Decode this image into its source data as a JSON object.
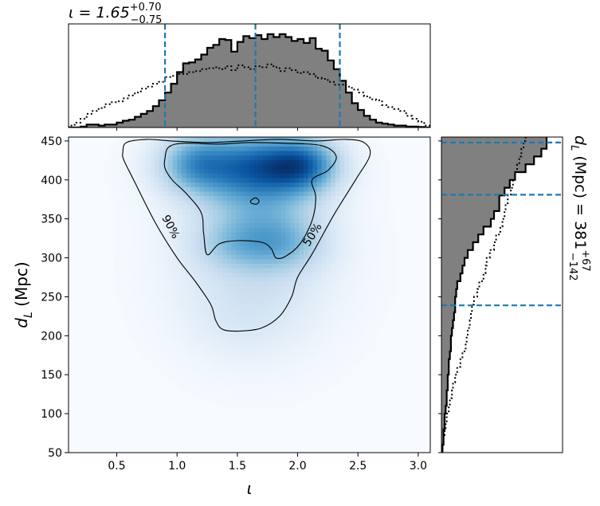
{
  "figure": {
    "top_title": {
      "prefix": "ι = 1.65",
      "sup": "+0.70",
      "sub": "−0.75"
    },
    "right_title": {
      "prefix": "d",
      "sub_L": "L",
      "middle": " (Mpc) = 381",
      "sup": "+67",
      "sub": "−142"
    }
  },
  "chart_data": [
    {
      "type": "heatmap",
      "role": "joint-posterior",
      "xlabel": "ι",
      "ylabel_main": "d",
      "ylabel_sub": "L",
      "ylabel_unit": " (Mpc)",
      "xlim": [
        0.1,
        3.1
      ],
      "ylim": [
        50,
        455
      ],
      "xticks": [
        0.5,
        1.0,
        1.5,
        2.0,
        2.5,
        3.0
      ],
      "xtick_labels": [
        "0.5",
        "1.0",
        "1.5",
        "2.0",
        "2.5",
        "3.0"
      ],
      "yticks": [
        50,
        100,
        150,
        200,
        250,
        300,
        350,
        400,
        450
      ],
      "ytick_labels": [
        "50",
        "100",
        "150",
        "200",
        "250",
        "300",
        "350",
        "400",
        "450"
      ],
      "colormap": "Blues",
      "contours": [
        {
          "label": "90%",
          "level": 0.9,
          "label_pos": [
            0.95,
            340
          ],
          "label_rotation": 62,
          "points": [
            [
              0.55,
              435
            ],
            [
              0.58,
              448
            ],
            [
              0.75,
              452
            ],
            [
              0.95,
              450
            ],
            [
              1.25,
              448
            ],
            [
              1.55,
              450
            ],
            [
              1.85,
              452
            ],
            [
              2.15,
              450
            ],
            [
              2.4,
              452
            ],
            [
              2.55,
              448
            ],
            [
              2.6,
              432
            ],
            [
              2.48,
              400
            ],
            [
              2.3,
              355
            ],
            [
              2.12,
              305
            ],
            [
              2.0,
              275
            ],
            [
              1.95,
              250
            ],
            [
              1.85,
              225
            ],
            [
              1.7,
              210
            ],
            [
              1.52,
              206
            ],
            [
              1.38,
              208
            ],
            [
              1.32,
              220
            ],
            [
              1.28,
              240
            ],
            [
              1.15,
              270
            ],
            [
              1.0,
              300
            ],
            [
              0.82,
              345
            ],
            [
              0.64,
              400
            ],
            [
              0.56,
              425
            ]
          ]
        },
        {
          "label": "50%",
          "level": 0.5,
          "label_pos": [
            2.12,
            330
          ],
          "label_rotation": -58,
          "points": [
            [
              0.9,
              428
            ],
            [
              0.93,
              442
            ],
            [
              1.05,
              447
            ],
            [
              1.35,
              446
            ],
            [
              1.6,
              448
            ],
            [
              1.9,
              447
            ],
            [
              2.2,
              444
            ],
            [
              2.32,
              430
            ],
            [
              2.25,
              412
            ],
            [
              2.12,
              400
            ],
            [
              2.15,
              378
            ],
            [
              2.12,
              348
            ],
            [
              2.02,
              318
            ],
            [
              1.9,
              302
            ],
            [
              1.82,
              300
            ],
            [
              1.78,
              312
            ],
            [
              1.7,
              320
            ],
            [
              1.5,
              322
            ],
            [
              1.35,
              318
            ],
            [
              1.25,
              304
            ],
            [
              1.22,
              332
            ],
            [
              1.2,
              358
            ],
            [
              1.08,
              382
            ],
            [
              0.96,
              400
            ],
            [
              0.9,
              415
            ]
          ]
        },
        {
          "label": "",
          "level": 0.5,
          "points": [
            [
              1.61,
              373
            ],
            [
              1.65,
              377
            ],
            [
              1.68,
              373
            ],
            [
              1.66,
              369
            ],
            [
              1.62,
              370
            ]
          ]
        }
      ],
      "density_blobs": [
        {
          "x": 1.82,
          "y": 418,
          "sx": 0.28,
          "sy": 26,
          "w": 1.0
        },
        {
          "x": 2.06,
          "y": 420,
          "sx": 0.18,
          "sy": 22,
          "w": 0.7
        },
        {
          "x": 1.35,
          "y": 418,
          "sx": 0.3,
          "sy": 30,
          "w": 0.7
        },
        {
          "x": 1.15,
          "y": 422,
          "sx": 0.18,
          "sy": 22,
          "w": 0.45
        },
        {
          "x": 1.72,
          "y": 355,
          "sx": 0.3,
          "sy": 45,
          "w": 0.45
        },
        {
          "x": 1.5,
          "y": 318,
          "sx": 0.25,
          "sy": 22,
          "w": 0.3
        },
        {
          "x": 1.9,
          "y": 318,
          "sx": 0.22,
          "sy": 22,
          "w": 0.3
        },
        {
          "x": 1.65,
          "y": 290,
          "sx": 0.45,
          "sy": 70,
          "w": 0.18
        },
        {
          "x": 1.55,
          "y": 225,
          "sx": 0.3,
          "sy": 35,
          "w": 0.08
        }
      ]
    },
    {
      "type": "bar",
      "role": "marginal-iota",
      "x_edges": [
        0.1,
        0.15,
        0.2,
        0.25,
        0.3,
        0.35,
        0.4,
        0.45,
        0.5,
        0.55,
        0.6,
        0.65,
        0.7,
        0.75,
        0.8,
        0.85,
        0.9,
        0.95,
        1.0,
        1.05,
        1.1,
        1.15,
        1.2,
        1.25,
        1.3,
        1.35,
        1.4,
        1.45,
        1.5,
        1.55,
        1.6,
        1.65,
        1.7,
        1.75,
        1.8,
        1.85,
        1.9,
        1.95,
        2.0,
        2.05,
        2.1,
        2.15,
        2.2,
        2.25,
        2.3,
        2.35,
        2.4,
        2.45,
        2.5,
        2.55,
        2.6,
        2.65,
        2.7,
        2.75,
        2.8,
        2.85,
        2.9,
        2.95,
        3.0,
        3.05,
        3.1
      ],
      "posterior": [
        0,
        0,
        0.01,
        0.03,
        0.03,
        0.02,
        0.03,
        0.03,
        0.05,
        0.07,
        0.08,
        0.11,
        0.14,
        0.17,
        0.22,
        0.28,
        0.36,
        0.45,
        0.57,
        0.66,
        0.67,
        0.7,
        0.75,
        0.82,
        0.85,
        0.91,
        0.9,
        0.78,
        0.88,
        0.94,
        0.92,
        0.95,
        0.91,
        0.96,
        0.93,
        0.96,
        0.93,
        0.89,
        0.91,
        0.87,
        0.92,
        0.81,
        0.79,
        0.69,
        0.6,
        0.48,
        0.36,
        0.25,
        0.18,
        0.12,
        0.08,
        0.05,
        0.04,
        0.03,
        0.02,
        0.02,
        0.01,
        0.01,
        0.005,
        0
      ],
      "prior": [
        0.02,
        0.05,
        0.09,
        0.14,
        0.17,
        0.2,
        0.24,
        0.26,
        0.27,
        0.3,
        0.33,
        0.36,
        0.4,
        0.42,
        0.45,
        0.47,
        0.52,
        0.53,
        0.55,
        0.55,
        0.57,
        0.58,
        0.6,
        0.61,
        0.62,
        0.6,
        0.63,
        0.59,
        0.64,
        0.62,
        0.6,
        0.63,
        0.62,
        0.65,
        0.62,
        0.58,
        0.61,
        0.59,
        0.56,
        0.57,
        0.55,
        0.51,
        0.5,
        0.47,
        0.44,
        0.44,
        0.42,
        0.39,
        0.36,
        0.32,
        0.29,
        0.28,
        0.23,
        0.21,
        0.19,
        0.17,
        0.12,
        0.09,
        0.06,
        0.02
      ],
      "ylim": [
        0,
        1.0
      ],
      "quantiles": [
        0.9,
        1.65,
        2.35
      ]
    },
    {
      "type": "bar",
      "orientation": "horizontal",
      "role": "marginal-distance",
      "y_edges": [
        50,
        60,
        70,
        80,
        90,
        100,
        110,
        120,
        130,
        140,
        150,
        160,
        170,
        180,
        190,
        200,
        210,
        220,
        230,
        240,
        250,
        260,
        270,
        280,
        290,
        300,
        310,
        320,
        330,
        340,
        350,
        360,
        370,
        380,
        390,
        400,
        410,
        420,
        430,
        440,
        450,
        455
      ],
      "posterior": [
        0.01,
        0.02,
        0.02,
        0.03,
        0.03,
        0.04,
        0.05,
        0.05,
        0.06,
        0.06,
        0.07,
        0.07,
        0.08,
        0.09,
        0.09,
        0.1,
        0.11,
        0.12,
        0.13,
        0.13,
        0.14,
        0.15,
        0.18,
        0.2,
        0.22,
        0.25,
        0.3,
        0.35,
        0.4,
        0.47,
        0.5,
        0.55,
        0.55,
        0.6,
        0.65,
        0.7,
        0.8,
        0.88,
        0.95,
        1.0,
        1.0
      ],
      "prior": [
        0.01,
        0.02,
        0.03,
        0.04,
        0.05,
        0.07,
        0.08,
        0.1,
        0.11,
        0.13,
        0.15,
        0.18,
        0.2,
        0.23,
        0.24,
        0.25,
        0.27,
        0.28,
        0.29,
        0.31,
        0.34,
        0.36,
        0.4,
        0.42,
        0.43,
        0.46,
        0.5,
        0.52,
        0.56,
        0.58,
        0.6,
        0.61,
        0.63,
        0.66,
        0.68,
        0.7,
        0.72,
        0.74,
        0.76,
        0.78,
        0.8
      ],
      "xlim": [
        0,
        1.0
      ],
      "quantiles": [
        239,
        381,
        448
      ]
    }
  ]
}
